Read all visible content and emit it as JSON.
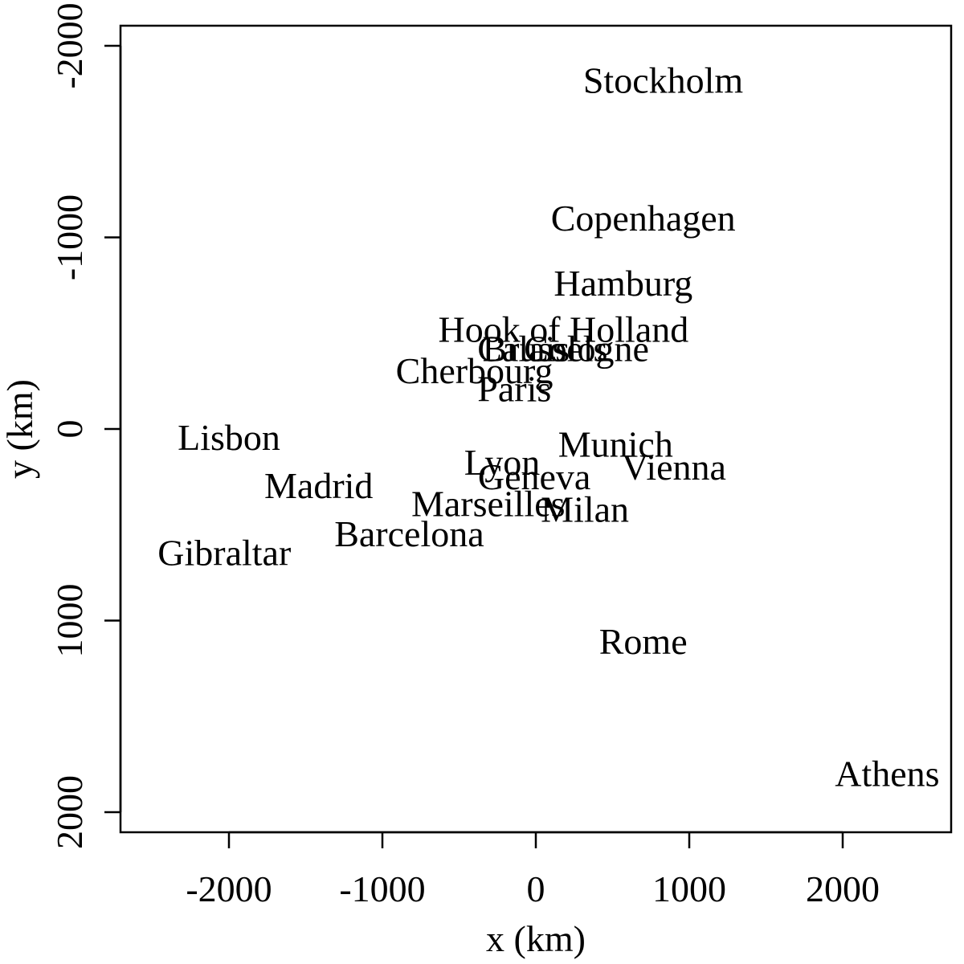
{
  "chart_data": {
    "type": "scatter",
    "title": "",
    "xlabel": "x (km)",
    "ylabel": "y (km)",
    "xlim": [
      -2700,
      2700
    ],
    "ylim": [
      2100,
      -2100
    ],
    "y_axis_reversed": true,
    "grid": false,
    "marker": "text-label",
    "x_ticks": [
      -2000,
      -1000,
      0,
      1000,
      2000
    ],
    "x_tick_labels": [
      "-2000",
      "-1000",
      "0",
      "1000",
      "2000"
    ],
    "y_ticks": [
      -2000,
      -1000,
      0,
      1000,
      2000
    ],
    "y_tick_labels": [
      "-2000",
      "-1000",
      "0",
      "1000",
      "2000"
    ],
    "points": [
      {
        "label": "Athens",
        "x": 2290,
        "y": 1798
      },
      {
        "label": "Barcelona",
        "x": -825,
        "y": 547
      },
      {
        "label": "Brussels",
        "x": 60,
        "y": -420
      },
      {
        "label": "Calais",
        "x": -80,
        "y": -420
      },
      {
        "label": "Cherbourg",
        "x": -400,
        "y": -305
      },
      {
        "label": "Cologne",
        "x": 330,
        "y": -420
      },
      {
        "label": "Copenhagen",
        "x": 700,
        "y": -1100
      },
      {
        "label": "Geneva",
        "x": -10,
        "y": 250
      },
      {
        "label": "Gibraltar",
        "x": -2030,
        "y": 645
      },
      {
        "label": "Hamburg",
        "x": 570,
        "y": -760
      },
      {
        "label": "Hook of Holland",
        "x": 180,
        "y": -520
      },
      {
        "label": "Lisbon",
        "x": -2000,
        "y": 45
      },
      {
        "label": "Lyon",
        "x": -220,
        "y": 175
      },
      {
        "label": "Madrid",
        "x": -1415,
        "y": 295
      },
      {
        "label": "Marseilles",
        "x": -310,
        "y": 390
      },
      {
        "label": "Milan",
        "x": 320,
        "y": 420
      },
      {
        "label": "Munich",
        "x": 520,
        "y": 80
      },
      {
        "label": "Paris",
        "x": -140,
        "y": -210
      },
      {
        "label": "Rome",
        "x": 700,
        "y": 1110
      },
      {
        "label": "Stockholm",
        "x": 830,
        "y": -1820
      },
      {
        "label": "Vienna",
        "x": 900,
        "y": 200
      }
    ]
  }
}
